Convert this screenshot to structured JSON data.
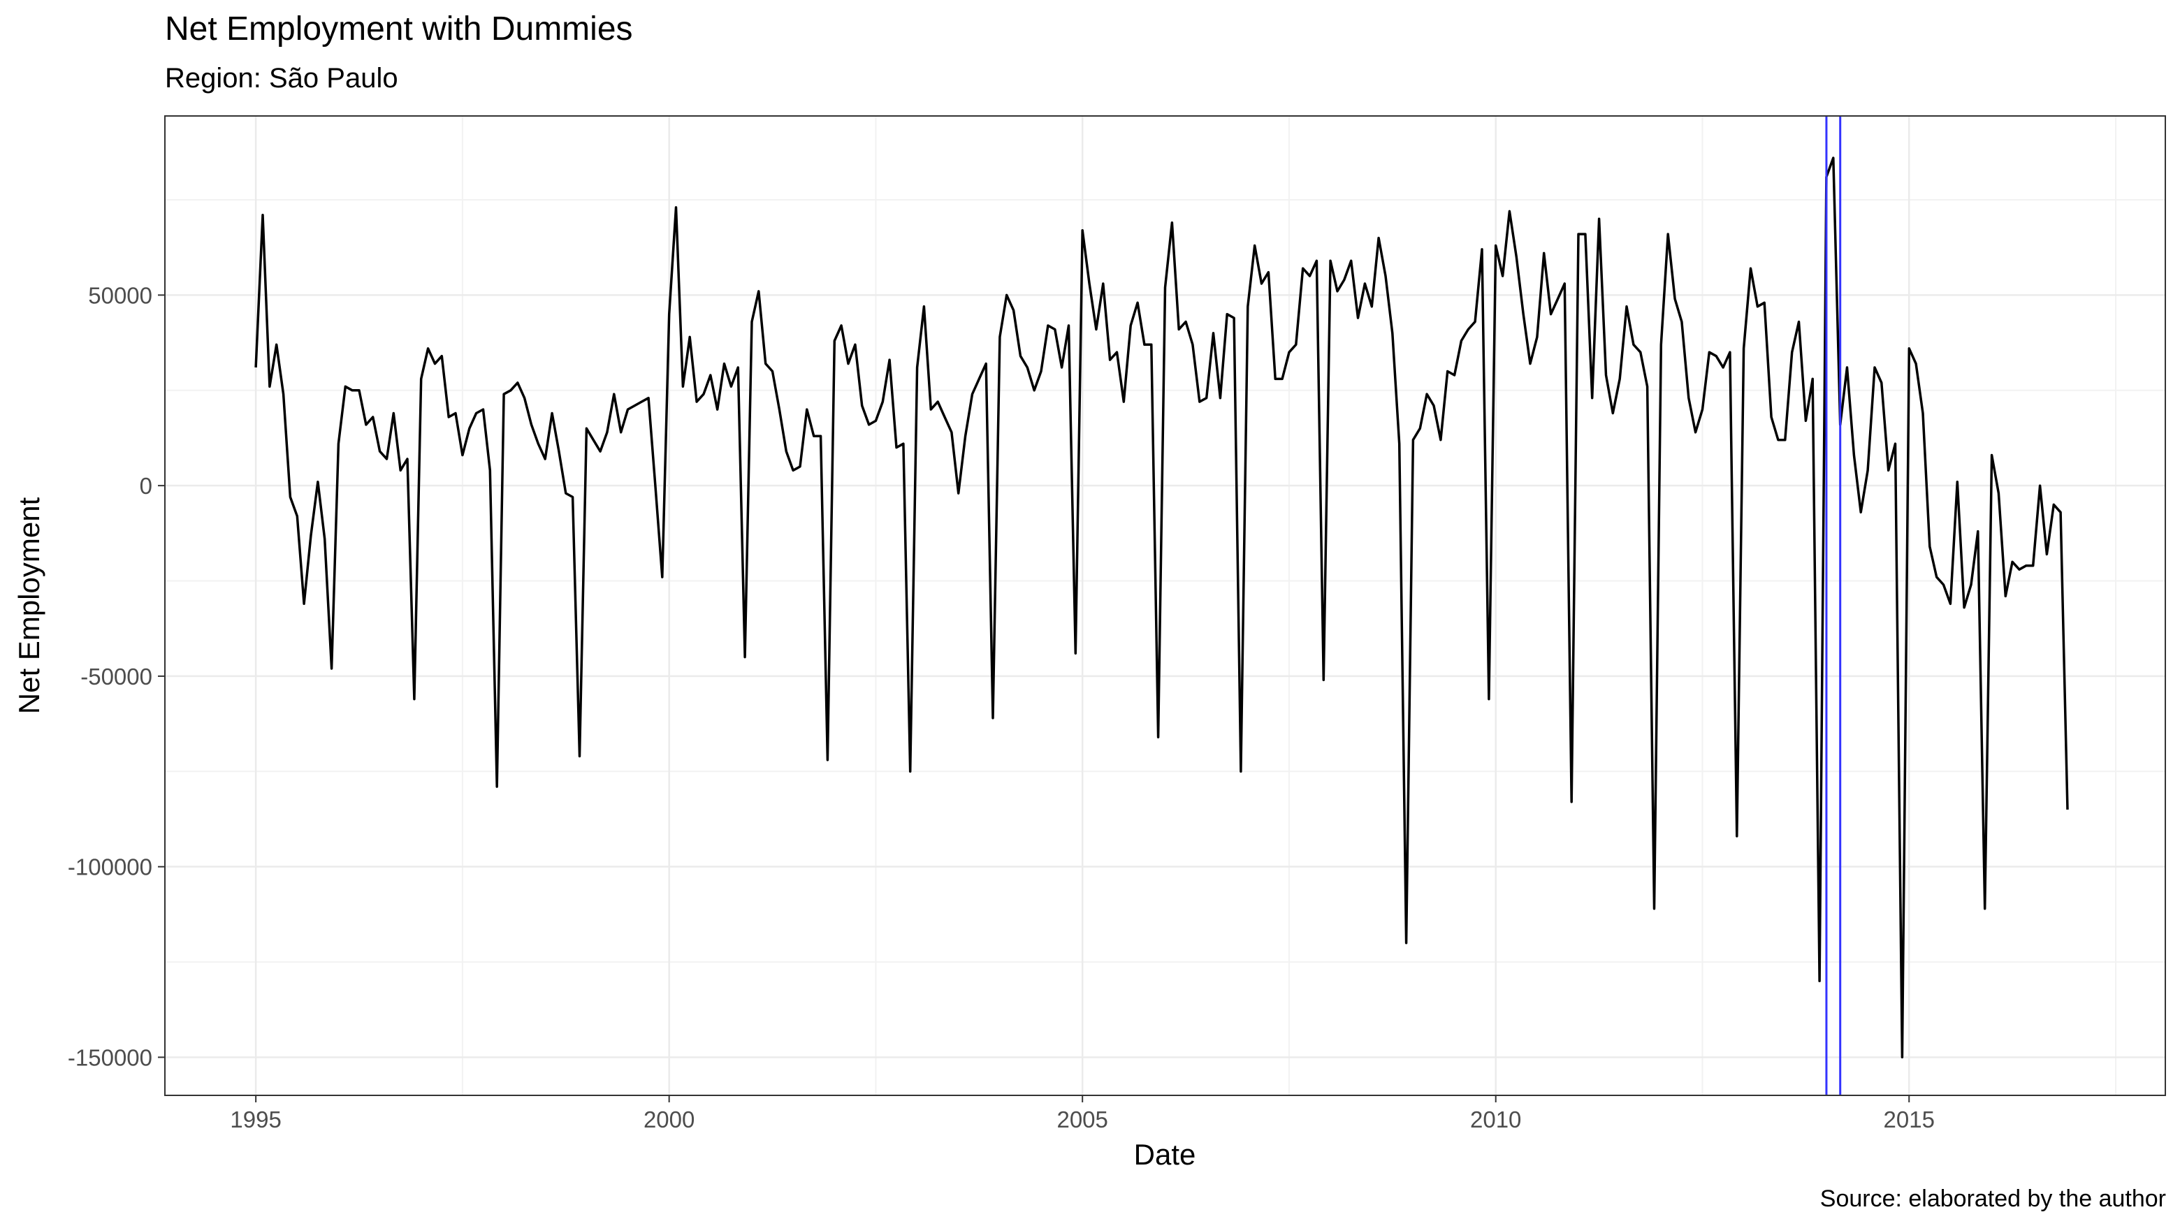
{
  "chart_data": {
    "type": "line",
    "title": "Net Employment with Dummies",
    "subtitle": "Region: São Paulo",
    "caption": "Source: elaborated by the author",
    "xlabel": "Date",
    "ylabel": "Net Employment",
    "xlim": [
      1993.9,
      2018.1
    ],
    "ylim": [
      -160000,
      97000
    ],
    "x_ticks": [
      1995,
      2000,
      2005,
      2010,
      2015
    ],
    "x_tick_labels": [
      "1995",
      "2000",
      "2005",
      "2010",
      "2015"
    ],
    "y_ticks": [
      50000,
      0,
      -50000,
      -100000,
      -150000
    ],
    "y_tick_labels": [
      "50000",
      "0",
      "-50000",
      "-100000",
      "-150000"
    ],
    "grid": true,
    "dummy_lines": {
      "color": "#3333ff",
      "x": [
        2014.0,
        2014.167
      ]
    },
    "series": [
      {
        "color": "#000000",
        "x_start": 1995.0,
        "step": 0.08333333,
        "values": [
          31000,
          71000,
          26000,
          37000,
          24000,
          -3000,
          -8000,
          -31000,
          -13000,
          1000,
          -14000,
          -48000,
          11000,
          26000,
          25000,
          25000,
          16000,
          18000,
          9000,
          7000,
          19000,
          4000,
          7000,
          -56000,
          28000,
          36000,
          32000,
          34000,
          18000,
          19000,
          8000,
          15000,
          19000,
          20000,
          4000,
          -79000,
          24000,
          25000,
          27000,
          23000,
          16000,
          11000,
          7000,
          19000,
          9000,
          -2000,
          -3000,
          -71000,
          15000,
          12000,
          9000,
          14000,
          24000,
          14000,
          20000,
          21000,
          22000,
          23000,
          0,
          -24000,
          45000,
          73000,
          26000,
          39000,
          22000,
          24000,
          29000,
          20000,
          32000,
          26000,
          31000,
          -45000,
          43000,
          51000,
          32000,
          30000,
          20000,
          9000,
          4000,
          5000,
          20000,
          13000,
          13000,
          -72000,
          38000,
          42000,
          32000,
          37000,
          21000,
          16000,
          17000,
          22000,
          33000,
          10000,
          11000,
          -75000,
          31000,
          47000,
          20000,
          22000,
          18000,
          14000,
          -2000,
          13000,
          24000,
          28000,
          32000,
          -61000,
          39000,
          50000,
          46000,
          34000,
          31000,
          25000,
          30000,
          42000,
          41000,
          31000,
          42000,
          -44000,
          67000,
          53000,
          41000,
          53000,
          33000,
          35000,
          22000,
          42000,
          48000,
          37000,
          37000,
          -66000,
          52000,
          69000,
          41000,
          43000,
          37000,
          22000,
          23000,
          40000,
          23000,
          45000,
          44000,
          -75000,
          47000,
          63000,
          53000,
          56000,
          28000,
          28000,
          35000,
          37000,
          57000,
          55000,
          59000,
          -51000,
          59000,
          51000,
          54000,
          59000,
          44000,
          53000,
          47000,
          65000,
          55000,
          40000,
          11000,
          -120000,
          12000,
          15000,
          24000,
          21000,
          12000,
          30000,
          29000,
          38000,
          41000,
          43000,
          62000,
          -56000,
          63000,
          55000,
          72000,
          60000,
          45000,
          32000,
          39000,
          61000,
          45000,
          49000,
          53000,
          -83000,
          66000,
          66000,
          23000,
          70000,
          29000,
          19000,
          28000,
          47000,
          37000,
          35000,
          26000,
          -111000,
          37000,
          66000,
          49000,
          43000,
          23000,
          14000,
          20000,
          35000,
          34000,
          31000,
          35000,
          -92000,
          36000,
          57000,
          47000,
          48000,
          18000,
          12000,
          12000,
          35000,
          43000,
          17000,
          28000,
          -130000,
          81000,
          86000,
          16000,
          31000,
          8000,
          -7000,
          4000,
          31000,
          27000,
          4000,
          11000,
          -150000,
          36000,
          32000,
          19000,
          -16000,
          -24000,
          -26000,
          -31000,
          1000,
          -32000,
          -26000,
          -12000,
          -111000,
          8000,
          -2000,
          -29000,
          -20000,
          -22000,
          -21000,
          -21000,
          0,
          -18000,
          -5000,
          -7000,
          -85000
        ]
      }
    ]
  }
}
